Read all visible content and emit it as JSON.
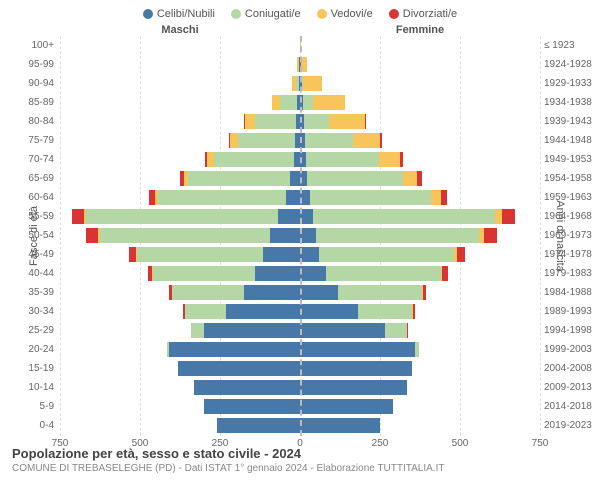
{
  "legend": {
    "celibi": {
      "label": "Celibi/Nubili",
      "color": "#4878a8"
    },
    "coniugati": {
      "label": "Coniugati/e",
      "color": "#b5d6a5"
    },
    "vedovi": {
      "label": "Vedovi/e",
      "color": "#f7c55a"
    },
    "divorziati": {
      "label": "Divorziati/e",
      "color": "#d93434"
    }
  },
  "headers": {
    "male": "Maschi",
    "female": "Femmine"
  },
  "y_left_title": "Fasce di età",
  "y_right_title": "Anni di nascita",
  "xmax": 750,
  "xticks": [
    750,
    500,
    250,
    0,
    250,
    500,
    750
  ],
  "colors": {
    "celibi": "#4878a8",
    "coniugati": "#b5d6a5",
    "vedovi": "#f7c55a",
    "divorziati": "#d93434",
    "grid": "#dddddd",
    "center": "#bbbbbb",
    "bg": "#ffffff"
  },
  "type": "population-pyramid",
  "footer": {
    "title": "Popolazione per età, sesso e stato civile - 2024",
    "sub": "COMUNE DI TREBASELEGHE (PD) - Dati ISTAT 1° gennaio 2024 - Elaborazione TUTTITALIA.IT"
  },
  "rows": [
    {
      "age": "100+",
      "year": "≤ 1923",
      "m": {
        "cel": 1,
        "con": 0,
        "ved": 0,
        "div": 0
      },
      "f": {
        "cel": 0,
        "con": 0,
        "ved": 3,
        "div": 0
      }
    },
    {
      "age": "95-99",
      "year": "1924-1928",
      "m": {
        "cel": 2,
        "con": 1,
        "ved": 5,
        "div": 0
      },
      "f": {
        "cel": 2,
        "con": 1,
        "ved": 20,
        "div": 0
      }
    },
    {
      "age": "90-94",
      "year": "1929-1933",
      "m": {
        "cel": 3,
        "con": 10,
        "ved": 12,
        "div": 0
      },
      "f": {
        "cel": 5,
        "con": 5,
        "ved": 60,
        "div": 0
      }
    },
    {
      "age": "85-89",
      "year": "1934-1938",
      "m": {
        "cel": 8,
        "con": 55,
        "ved": 25,
        "div": 0
      },
      "f": {
        "cel": 10,
        "con": 30,
        "ved": 100,
        "div": 0
      }
    },
    {
      "age": "80-84",
      "year": "1939-1943",
      "m": {
        "cel": 12,
        "con": 130,
        "ved": 30,
        "div": 2
      },
      "f": {
        "cel": 12,
        "con": 80,
        "ved": 110,
        "div": 3
      }
    },
    {
      "age": "75-79",
      "year": "1944-1948",
      "m": {
        "cel": 15,
        "con": 180,
        "ved": 25,
        "div": 3
      },
      "f": {
        "cel": 15,
        "con": 150,
        "ved": 85,
        "div": 5
      }
    },
    {
      "age": "70-74",
      "year": "1949-1953",
      "m": {
        "cel": 20,
        "con": 250,
        "ved": 20,
        "div": 8
      },
      "f": {
        "cel": 18,
        "con": 230,
        "ved": 65,
        "div": 10
      }
    },
    {
      "age": "65-69",
      "year": "1954-1958",
      "m": {
        "cel": 30,
        "con": 320,
        "ved": 12,
        "div": 12
      },
      "f": {
        "cel": 22,
        "con": 300,
        "ved": 45,
        "div": 15
      }
    },
    {
      "age": "60-64",
      "year": "1959-1963",
      "m": {
        "cel": 45,
        "con": 400,
        "ved": 8,
        "div": 18
      },
      "f": {
        "cel": 30,
        "con": 380,
        "ved": 30,
        "div": 20
      }
    },
    {
      "age": "55-59",
      "year": "1964-1968",
      "m": {
        "cel": 70,
        "con": 600,
        "ved": 6,
        "div": 38
      },
      "f": {
        "cel": 40,
        "con": 570,
        "ved": 22,
        "div": 40
      }
    },
    {
      "age": "50-54",
      "year": "1969-1973",
      "m": {
        "cel": 95,
        "con": 530,
        "ved": 5,
        "div": 38
      },
      "f": {
        "cel": 50,
        "con": 510,
        "ved": 15,
        "div": 40
      }
    },
    {
      "age": "45-49",
      "year": "1974-1978",
      "m": {
        "cel": 115,
        "con": 395,
        "ved": 3,
        "div": 22
      },
      "f": {
        "cel": 60,
        "con": 420,
        "ved": 10,
        "div": 25
      }
    },
    {
      "age": "40-44",
      "year": "1979-1983",
      "m": {
        "cel": 140,
        "con": 320,
        "ved": 2,
        "div": 13
      },
      "f": {
        "cel": 80,
        "con": 360,
        "ved": 5,
        "div": 18
      }
    },
    {
      "age": "35-39",
      "year": "1984-1988",
      "m": {
        "cel": 175,
        "con": 225,
        "ved": 1,
        "div": 9
      },
      "f": {
        "cel": 120,
        "con": 260,
        "ved": 3,
        "div": 12
      }
    },
    {
      "age": "30-34",
      "year": "1989-1993",
      "m": {
        "cel": 230,
        "con": 130,
        "ved": 0,
        "div": 5
      },
      "f": {
        "cel": 180,
        "con": 170,
        "ved": 2,
        "div": 8
      }
    },
    {
      "age": "25-29",
      "year": "1994-1998",
      "m": {
        "cel": 300,
        "con": 40,
        "ved": 0,
        "div": 2
      },
      "f": {
        "cel": 265,
        "con": 70,
        "ved": 0,
        "div": 3
      }
    },
    {
      "age": "20-24",
      "year": "1999-2003",
      "m": {
        "cel": 410,
        "con": 5,
        "ved": 0,
        "div": 0
      },
      "f": {
        "cel": 360,
        "con": 12,
        "ved": 0,
        "div": 0
      }
    },
    {
      "age": "15-19",
      "year": "2004-2008",
      "m": {
        "cel": 380,
        "con": 0,
        "ved": 0,
        "div": 0
      },
      "f": {
        "cel": 350,
        "con": 0,
        "ved": 0,
        "div": 0
      }
    },
    {
      "age": "10-14",
      "year": "2009-2013",
      "m": {
        "cel": 330,
        "con": 0,
        "ved": 0,
        "div": 0
      },
      "f": {
        "cel": 335,
        "con": 0,
        "ved": 0,
        "div": 0
      }
    },
    {
      "age": "5-9",
      "year": "2014-2018",
      "m": {
        "cel": 300,
        "con": 0,
        "ved": 0,
        "div": 0
      },
      "f": {
        "cel": 290,
        "con": 0,
        "ved": 0,
        "div": 0
      }
    },
    {
      "age": "0-4",
      "year": "2019-2023",
      "m": {
        "cel": 260,
        "con": 0,
        "ved": 0,
        "div": 0
      },
      "f": {
        "cel": 250,
        "con": 0,
        "ved": 0,
        "div": 0
      }
    }
  ]
}
